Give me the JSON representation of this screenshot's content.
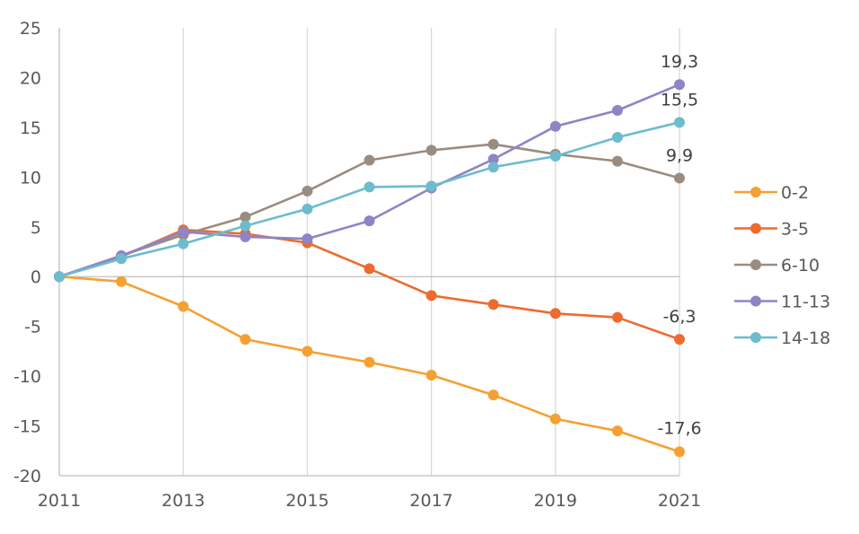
{
  "chart_data": {
    "type": "line",
    "title": "",
    "xlabel": "",
    "ylabel": "",
    "x": [
      2011,
      2012,
      2013,
      2014,
      2015,
      2016,
      2017,
      2018,
      2019,
      2020,
      2021
    ],
    "x_tick_labels": [
      "2011",
      "2013",
      "2015",
      "2017",
      "2019",
      "2021"
    ],
    "x_tick_values": [
      2011,
      2013,
      2015,
      2017,
      2019,
      2021
    ],
    "ylim": [
      -20,
      25
    ],
    "y_ticks": [
      -20,
      -15,
      -10,
      -5,
      0,
      5,
      10,
      15,
      20,
      25
    ],
    "y_tick_labels": [
      "-20",
      "-15",
      "-10",
      "-5",
      "0",
      "5",
      "10",
      "15",
      "20",
      "25"
    ],
    "grid": "vertical",
    "legend_position": "right",
    "series": [
      {
        "name": "0-2",
        "color": "#F5A033",
        "values": [
          0,
          -0.5,
          -3.0,
          -6.3,
          -7.5,
          -8.6,
          -9.9,
          -11.9,
          -14.3,
          -15.5,
          -17.6
        ],
        "end_label": "-17,6"
      },
      {
        "name": "3-5",
        "color": "#EE6B2F",
        "values": [
          0,
          2.0,
          4.7,
          4.3,
          3.4,
          0.8,
          -1.9,
          -2.8,
          -3.7,
          -4.1,
          -6.3
        ],
        "end_label": "-6,3"
      },
      {
        "name": "6-10",
        "color": "#9A8C80",
        "values": [
          0,
          2.1,
          4.2,
          6.0,
          8.6,
          11.7,
          12.7,
          13.3,
          12.3,
          11.6,
          9.9
        ],
        "end_label": "9,9"
      },
      {
        "name": "11-13",
        "color": "#8E85C6",
        "values": [
          0,
          2.1,
          4.5,
          4.0,
          3.8,
          5.6,
          8.9,
          11.8,
          15.1,
          16.7,
          19.3
        ],
        "end_label": "19,3"
      },
      {
        "name": "14-18",
        "color": "#6CBCCD",
        "values": [
          0,
          1.8,
          3.3,
          5.1,
          6.8,
          9.0,
          9.1,
          11.0,
          12.1,
          14.0,
          15.5
        ],
        "end_label": "15,5"
      }
    ]
  }
}
